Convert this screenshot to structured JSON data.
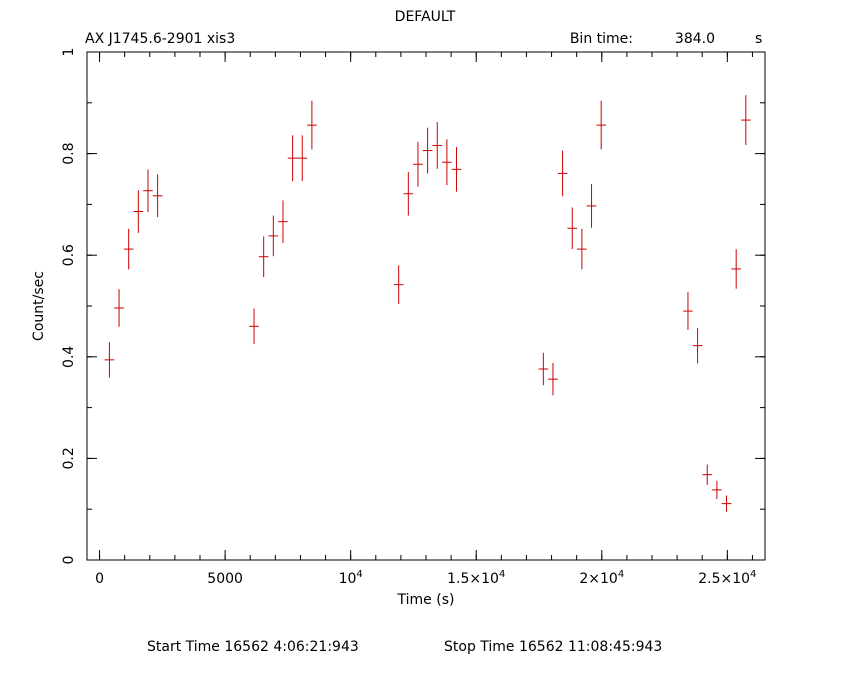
{
  "header": {
    "title": "DEFAULT",
    "source": "AX J1745.6-2901  xis3",
    "bin_label": "Bin time:",
    "bin_value": "384.0",
    "bin_unit": "s"
  },
  "footer": {
    "start": "Start Time 16562  4:06:21:943",
    "stop": "Stop Time 16562 11:08:45:943"
  },
  "colors": {
    "points": "#cc0000",
    "axes": "#000000"
  },
  "chart_data": {
    "type": "scatter",
    "title": "DEFAULT",
    "xlabel": "Time (s)",
    "ylabel": "Count/sec",
    "xlim": [
      -500,
      26500
    ],
    "ylim": [
      0,
      1
    ],
    "xticks": [
      {
        "value": 0,
        "label": "0"
      },
      {
        "value": 5000,
        "label": "5000"
      },
      {
        "value": 10000,
        "label": "10",
        "exp": "4"
      },
      {
        "value": 15000,
        "label": "1.5×10",
        "exp": "4"
      },
      {
        "value": 20000,
        "label": "2×10",
        "exp": "4"
      },
      {
        "value": 25000,
        "label": "2.5×10",
        "exp": "4"
      }
    ],
    "yticks": [
      {
        "value": 0,
        "label": "0"
      },
      {
        "value": 0.2,
        "label": "0.2"
      },
      {
        "value": 0.4,
        "label": "0.4"
      },
      {
        "value": 0.6,
        "label": "0.6"
      },
      {
        "value": 0.8,
        "label": "0.8"
      },
      {
        "value": 1,
        "label": "1"
      }
    ],
    "x_minor_step": 1000,
    "y_minor_step": 0.1,
    "half_bin": 192,
    "points": [
      {
        "x": 392,
        "y": 0.394,
        "err": 0.035
      },
      {
        "x": 776,
        "y": 0.496,
        "err": 0.037
      },
      {
        "x": 1160,
        "y": 0.612,
        "err": 0.04
      },
      {
        "x": 1544,
        "y": 0.686,
        "err": 0.042
      },
      {
        "x": 1928,
        "y": 0.727,
        "err": 0.042
      },
      {
        "x": 2312,
        "y": 0.717,
        "err": 0.042
      },
      {
        "x": 6152,
        "y": 0.46,
        "err": 0.035
      },
      {
        "x": 6536,
        "y": 0.597,
        "err": 0.04
      },
      {
        "x": 6920,
        "y": 0.638,
        "err": 0.04
      },
      {
        "x": 7304,
        "y": 0.666,
        "err": 0.042
      },
      {
        "x": 7688,
        "y": 0.791,
        "err": 0.045
      },
      {
        "x": 8072,
        "y": 0.791,
        "err": 0.045
      },
      {
        "x": 8456,
        "y": 0.856,
        "err": 0.048
      },
      {
        "x": 11912,
        "y": 0.542,
        "err": 0.038
      },
      {
        "x": 12296,
        "y": 0.721,
        "err": 0.043
      },
      {
        "x": 12680,
        "y": 0.779,
        "err": 0.044
      },
      {
        "x": 13064,
        "y": 0.806,
        "err": 0.045
      },
      {
        "x": 13448,
        "y": 0.816,
        "err": 0.046
      },
      {
        "x": 13832,
        "y": 0.783,
        "err": 0.045
      },
      {
        "x": 14216,
        "y": 0.769,
        "err": 0.044
      },
      {
        "x": 17672,
        "y": 0.376,
        "err": 0.032
      },
      {
        "x": 18056,
        "y": 0.356,
        "err": 0.032
      },
      {
        "x": 18440,
        "y": 0.761,
        "err": 0.045
      },
      {
        "x": 18824,
        "y": 0.653,
        "err": 0.041
      },
      {
        "x": 19208,
        "y": 0.612,
        "err": 0.04
      },
      {
        "x": 19592,
        "y": 0.697,
        "err": 0.043
      },
      {
        "x": 19976,
        "y": 0.856,
        "err": 0.048
      },
      {
        "x": 23432,
        "y": 0.49,
        "err": 0.037
      },
      {
        "x": 23816,
        "y": 0.422,
        "err": 0.035
      },
      {
        "x": 24200,
        "y": 0.168,
        "err": 0.02
      },
      {
        "x": 24584,
        "y": 0.138,
        "err": 0.018
      },
      {
        "x": 24968,
        "y": 0.111,
        "err": 0.016
      },
      {
        "x": 25352,
        "y": 0.573,
        "err": 0.039
      },
      {
        "x": 25736,
        "y": 0.866,
        "err": 0.049
      }
    ]
  }
}
